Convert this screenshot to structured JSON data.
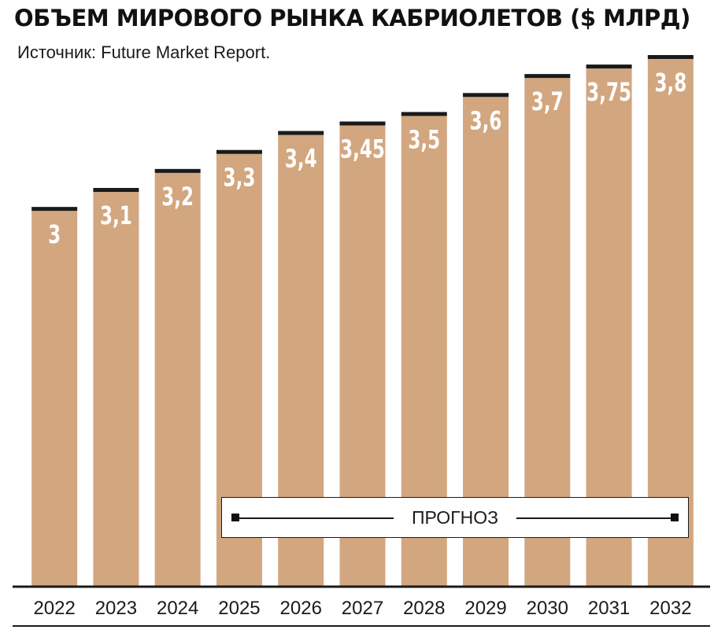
{
  "chart_data": {
    "type": "bar",
    "title": "ОБЪЕМ МИРОВОГО РЫНКА КАБРИОЛЕТОВ ($ МЛРД)",
    "source": "Источник: Future Market Report.",
    "categories": [
      "2022",
      "2023",
      "2024",
      "2025",
      "2026",
      "2027",
      "2028",
      "2029",
      "2030",
      "2031",
      "2032"
    ],
    "values": [
      3,
      3.1,
      3.2,
      3.3,
      3.4,
      3.45,
      3.5,
      3.6,
      3.7,
      3.75,
      3.8
    ],
    "value_labels": [
      "3",
      "3,1",
      "3,2",
      "3,3",
      "3,4",
      "3,45",
      "3,5",
      "3,6",
      "3,7",
      "3,75",
      "3,8"
    ],
    "ylim": [
      1,
      3.8
    ],
    "grid": false,
    "bar_color": "#d2a67f",
    "cap_color": "#1a1a1a",
    "forecast": {
      "label": "ПРОГНОЗ",
      "from": "2025",
      "to": "2032"
    }
  }
}
